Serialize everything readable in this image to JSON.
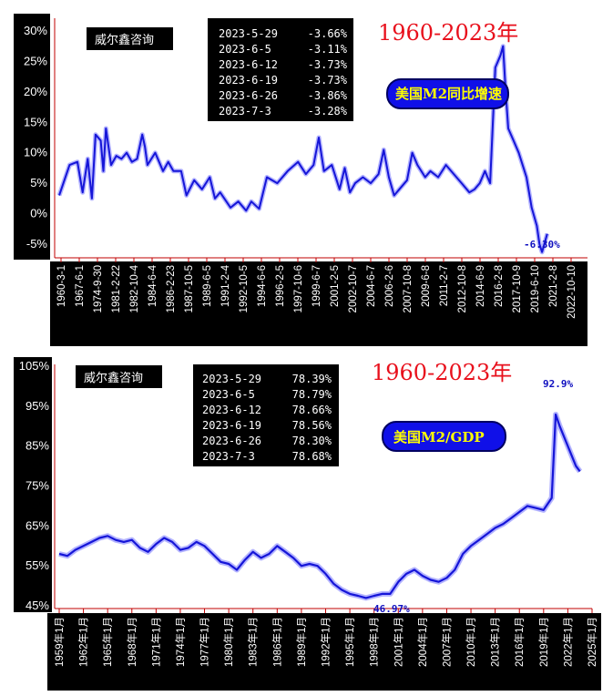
{
  "chart_data": [
    {
      "type": "line",
      "title": "1960-2023年",
      "label": "美国M2同比增速",
      "brand": "威尔鑫咨询",
      "ylim": [
        -6,
        31
      ],
      "y_ticks": [
        "30%",
        "25%",
        "20%",
        "15%",
        "10%",
        "5%",
        "0%",
        "-5%"
      ],
      "x_ticks": [
        "1960-3-1",
        "1967-6-1",
        "1974-9-30",
        "1981-2-22",
        "1982-10-4",
        "1984-6-4",
        "1986-2-23",
        "1987-10-5",
        "1989-6-5",
        "1991-2-4",
        "1992-10-5",
        "1994-6-6",
        "1996-2-5",
        "1997-10-6",
        "1999-6-7",
        "2001-2-5",
        "2002-10-7",
        "2004-6-7",
        "2006-2-6",
        "2007-10-8",
        "2009-6-8",
        "2011-2-7",
        "2012-10-8",
        "2014-6-9",
        "2016-2-8",
        "2017-10-9",
        "2019-6-10",
        "2021-2-8",
        "2022-10-10"
      ],
      "table": [
        {
          "date": "2023-5-29",
          "value": "-3.66%"
        },
        {
          "date": "2023-6-5",
          "value": "-3.11%"
        },
        {
          "date": "2023-6-12",
          "value": "-3.73%"
        },
        {
          "date": "2023-6-19",
          "value": "-3.73%"
        },
        {
          "date": "2023-6-26",
          "value": "-3.86%"
        },
        {
          "date": "2023-7-3",
          "value": "-3.28%"
        }
      ],
      "annotation": "-6.30%",
      "series": [
        {
          "name": "美国M2同比增速",
          "color": "#1515d8",
          "values": [
            [
              0,
              3
            ],
            [
              0.02,
              8
            ],
            [
              0.035,
              8.5
            ],
            [
              0.045,
              3.5
            ],
            [
              0.055,
              9
            ],
            [
              0.063,
              2.5
            ],
            [
              0.07,
              13
            ],
            [
              0.08,
              12
            ],
            [
              0.085,
              7
            ],
            [
              0.09,
              14
            ],
            [
              0.1,
              8
            ],
            [
              0.11,
              9.5
            ],
            [
              0.12,
              9
            ],
            [
              0.13,
              10
            ],
            [
              0.14,
              8.5
            ],
            [
              0.15,
              9
            ],
            [
              0.16,
              13
            ],
            [
              0.165,
              11
            ],
            [
              0.17,
              8
            ],
            [
              0.185,
              10
            ],
            [
              0.2,
              7
            ],
            [
              0.21,
              8.5
            ],
            [
              0.22,
              7
            ],
            [
              0.235,
              7
            ],
            [
              0.245,
              3
            ],
            [
              0.26,
              5.5
            ],
            [
              0.275,
              4
            ],
            [
              0.29,
              6
            ],
            [
              0.3,
              2.5
            ],
            [
              0.31,
              3.5
            ],
            [
              0.33,
              1
            ],
            [
              0.345,
              2
            ],
            [
              0.36,
              0.5
            ],
            [
              0.37,
              2
            ],
            [
              0.385,
              0.8
            ],
            [
              0.4,
              6
            ],
            [
              0.42,
              5
            ],
            [
              0.44,
              7
            ],
            [
              0.46,
              8.5
            ],
            [
              0.475,
              6.5
            ],
            [
              0.49,
              8
            ],
            [
              0.5,
              12.5
            ],
            [
              0.51,
              7
            ],
            [
              0.525,
              8
            ],
            [
              0.54,
              4
            ],
            [
              0.55,
              7.5
            ],
            [
              0.56,
              3.5
            ],
            [
              0.57,
              5
            ],
            [
              0.585,
              6
            ],
            [
              0.6,
              5
            ],
            [
              0.615,
              6.5
            ],
            [
              0.625,
              10.5
            ],
            [
              0.635,
              6
            ],
            [
              0.645,
              3
            ],
            [
              0.655,
              4
            ],
            [
              0.67,
              5.5
            ],
            [
              0.68,
              10
            ],
            [
              0.69,
              8
            ],
            [
              0.705,
              6
            ],
            [
              0.715,
              7
            ],
            [
              0.73,
              6
            ],
            [
              0.745,
              8
            ],
            [
              0.76,
              6.5
            ],
            [
              0.775,
              5
            ],
            [
              0.79,
              3.5
            ],
            [
              0.8,
              4
            ],
            [
              0.81,
              5
            ],
            [
              0.82,
              7
            ],
            [
              0.83,
              5
            ],
            [
              0.84,
              24
            ],
            [
              0.85,
              26
            ],
            [
              0.855,
              27.5
            ],
            [
              0.86,
              20
            ],
            [
              0.865,
              14
            ],
            [
              0.875,
              12
            ],
            [
              0.885,
              10
            ],
            [
              0.9,
              6
            ],
            [
              0.91,
              1
            ],
            [
              0.92,
              -2
            ],
            [
              0.925,
              -5
            ],
            [
              0.93,
              -6.3
            ],
            [
              0.94,
              -3.3
            ]
          ]
        }
      ]
    },
    {
      "type": "line",
      "title": "1960-2023年",
      "label": "美国M2/GDP",
      "brand": "威尔鑫咨询",
      "ylim": [
        45,
        105
      ],
      "y_ticks": [
        "105%",
        "95%",
        "85%",
        "75%",
        "65%",
        "55%",
        "45%"
      ],
      "x_ticks": [
        "1959年1月",
        "1962年1月",
        "1965年1月",
        "1968年1月",
        "1971年1月",
        "1974年1月",
        "1977年1月",
        "1980年1月",
        "1983年1月",
        "1986年1月",
        "1989年1月",
        "1992年1月",
        "1995年1月",
        "1998年1月",
        "2001年1月",
        "2004年1月",
        "2007年1月",
        "2010年1月",
        "2013年1月",
        "2016年1月",
        "2019年1月",
        "2022年1月",
        "2025年1月"
      ],
      "table": [
        {
          "date": "2023-5-29",
          "value": "78.39%"
        },
        {
          "date": "2023-6-5",
          "value": "78.79%"
        },
        {
          "date": "2023-6-12",
          "value": "78.66%"
        },
        {
          "date": "2023-6-19",
          "value": "78.56%"
        },
        {
          "date": "2023-6-26",
          "value": "78.30%"
        },
        {
          "date": "2023-7-3",
          "value": "78.68%"
        }
      ],
      "annotations": [
        "92.9%",
        "46.97%"
      ],
      "series": [
        {
          "name": "美国M2/GDP",
          "color": "#1515d8",
          "values": [
            [
              1959,
              58
            ],
            [
              1960,
              57.5
            ],
            [
              1961,
              59
            ],
            [
              1962,
              60
            ],
            [
              1963,
              61
            ],
            [
              1964,
              62
            ],
            [
              1965,
              62.5
            ],
            [
              1966,
              61.5
            ],
            [
              1967,
              61
            ],
            [
              1968,
              61.5
            ],
            [
              1969,
              59.5
            ],
            [
              1970,
              58.5
            ],
            [
              1971,
              60.5
            ],
            [
              1972,
              62
            ],
            [
              1973,
              61
            ],
            [
              1974,
              59
            ],
            [
              1975,
              59.5
            ],
            [
              1976,
              61
            ],
            [
              1977,
              60
            ],
            [
              1978,
              58
            ],
            [
              1979,
              56
            ],
            [
              1980,
              55.5
            ],
            [
              1981,
              54
            ],
            [
              1982,
              56.5
            ],
            [
              1983,
              58.5
            ],
            [
              1984,
              57
            ],
            [
              1985,
              58
            ],
            [
              1986,
              60
            ],
            [
              1987,
              58.5
            ],
            [
              1988,
              57
            ],
            [
              1989,
              55
            ],
            [
              1990,
              55.5
            ],
            [
              1991,
              55
            ],
            [
              1992,
              53
            ],
            [
              1993,
              50.5
            ],
            [
              1994,
              49
            ],
            [
              1995,
              48
            ],
            [
              1996,
              47.5
            ],
            [
              1997,
              46.97
            ],
            [
              1998,
              47.5
            ],
            [
              1999,
              48
            ],
            [
              2000,
              48
            ],
            [
              2001,
              51
            ],
            [
              2002,
              53
            ],
            [
              2003,
              54
            ],
            [
              2004,
              52.5
            ],
            [
              2005,
              51.5
            ],
            [
              2006,
              51
            ],
            [
              2007,
              52
            ],
            [
              2008,
              54
            ],
            [
              2009,
              58
            ],
            [
              2010,
              60
            ],
            [
              2011,
              61.5
            ],
            [
              2012,
              63
            ],
            [
              2013,
              64.5
            ],
            [
              2014,
              65.5
            ],
            [
              2015,
              67
            ],
            [
              2016,
              68.5
            ],
            [
              2017,
              70
            ],
            [
              2018,
              69.5
            ],
            [
              2019,
              69
            ],
            [
              2020,
              72
            ],
            [
              2020.5,
              92.9
            ],
            [
              2021,
              90
            ],
            [
              2022,
              85
            ],
            [
              2023,
              80
            ],
            [
              2023.5,
              78.68
            ]
          ]
        }
      ]
    }
  ]
}
